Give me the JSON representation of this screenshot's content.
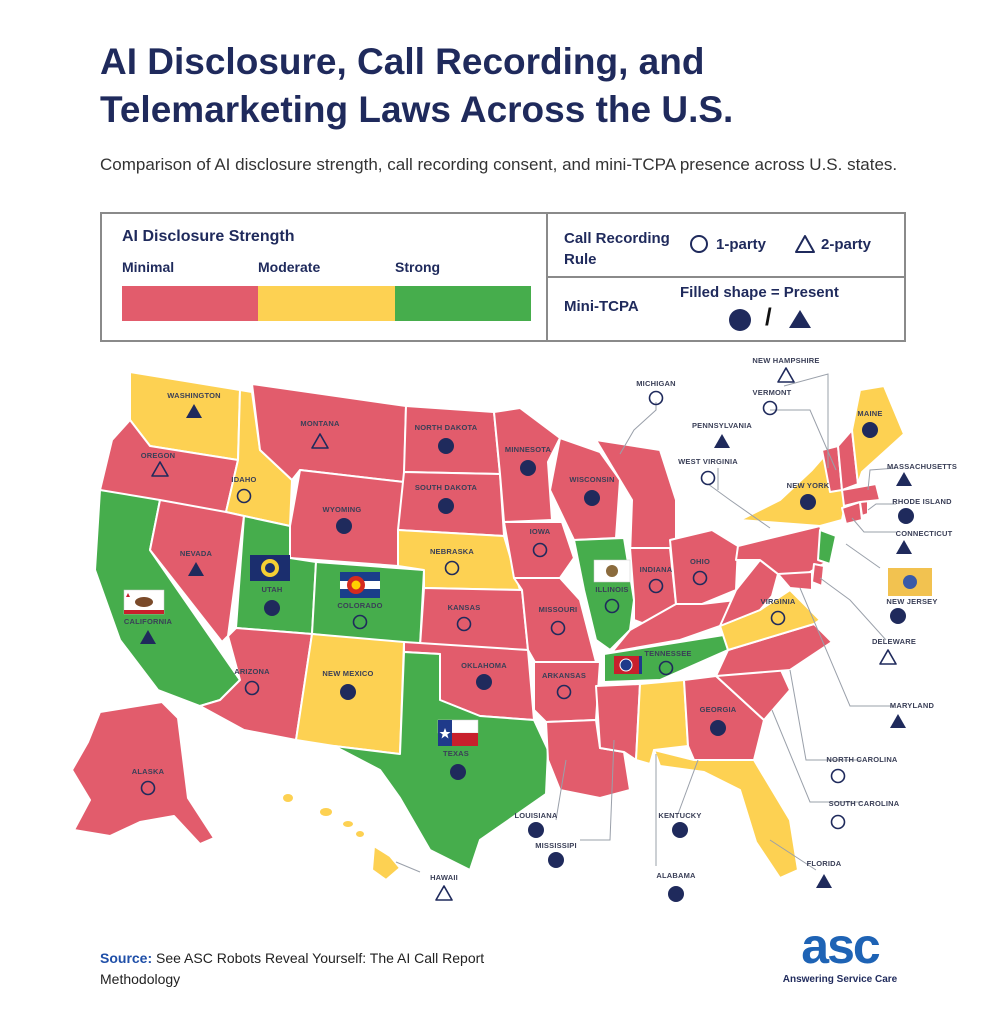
{
  "title_line1": "AI Disclosure, Call Recording, and",
  "title_line2": "Telemarketing Laws Across the U.S.",
  "subtitle": "Comparison of AI disclosure strength, call recording consent, and mini-TCPA presence across U.S. states.",
  "legend": {
    "ai_title": "AI Disclosure Strength",
    "tiers": [
      {
        "label": "Minimal",
        "color": "#e25c6c"
      },
      {
        "label": "Moderate",
        "color": "#fdd152"
      },
      {
        "label": "Strong",
        "color": "#46ad4c"
      }
    ],
    "call_title": "Call Recording Rule",
    "one_party": "1-party",
    "two_party": "2-party",
    "mini_title": "Mini-TCPA",
    "filled_label": "Filled shape = Present",
    "separator": "/"
  },
  "colors": {
    "minimal": "#e25c6c",
    "moderate": "#fdd152",
    "strong": "#46ad4c",
    "marker": "#1f2a5c",
    "border": "#ffffff"
  },
  "states": [
    {
      "name": "WASHINGTON",
      "disclosure": "moderate",
      "recording": "2-party",
      "mini_tcpa": true
    },
    {
      "name": "OREGON",
      "disclosure": "minimal",
      "recording": "2-party",
      "mini_tcpa": false
    },
    {
      "name": "CALIFORNIA",
      "disclosure": "strong",
      "recording": "2-party",
      "mini_tcpa": true
    },
    {
      "name": "IDAHO",
      "disclosure": "moderate",
      "recording": "1-party",
      "mini_tcpa": false
    },
    {
      "name": "NEVADA",
      "disclosure": "minimal",
      "recording": "2-party",
      "mini_tcpa": true
    },
    {
      "name": "MONTANA",
      "disclosure": "minimal",
      "recording": "2-party",
      "mini_tcpa": false
    },
    {
      "name": "WYOMING",
      "disclosure": "minimal",
      "recording": "1-party",
      "mini_tcpa": true
    },
    {
      "name": "UTAH",
      "disclosure": "strong",
      "recording": "1-party",
      "mini_tcpa": true
    },
    {
      "name": "COLORADO",
      "disclosure": "strong",
      "recording": "1-party",
      "mini_tcpa": false
    },
    {
      "name": "ARIZONA",
      "disclosure": "minimal",
      "recording": "1-party",
      "mini_tcpa": false
    },
    {
      "name": "NEW MEXICO",
      "disclosure": "moderate",
      "recording": "1-party",
      "mini_tcpa": true
    },
    {
      "name": "NORTH DAKOTA",
      "disclosure": "minimal",
      "recording": "1-party",
      "mini_tcpa": true
    },
    {
      "name": "SOUTH DAKOTA",
      "disclosure": "minimal",
      "recording": "1-party",
      "mini_tcpa": true
    },
    {
      "name": "NEBRASKA",
      "disclosure": "moderate",
      "recording": "1-party",
      "mini_tcpa": false
    },
    {
      "name": "KANSAS",
      "disclosure": "minimal",
      "recording": "1-party",
      "mini_tcpa": false
    },
    {
      "name": "OKLAHOMA",
      "disclosure": "minimal",
      "recording": "1-party",
      "mini_tcpa": true
    },
    {
      "name": "TEXAS",
      "disclosure": "strong",
      "recording": "1-party",
      "mini_tcpa": true
    },
    {
      "name": "MINNESOTA",
      "disclosure": "minimal",
      "recording": "1-party",
      "mini_tcpa": true
    },
    {
      "name": "IOWA",
      "disclosure": "minimal",
      "recording": "1-party",
      "mini_tcpa": false
    },
    {
      "name": "MISSOURI",
      "disclosure": "minimal",
      "recording": "1-party",
      "mini_tcpa": false
    },
    {
      "name": "ARKANSAS",
      "disclosure": "minimal",
      "recording": "1-party",
      "mini_tcpa": false
    },
    {
      "name": "LOUISIANA",
      "disclosure": "minimal",
      "recording": "1-party",
      "mini_tcpa": true
    },
    {
      "name": "WISCONSIN",
      "disclosure": "minimal",
      "recording": "1-party",
      "mini_tcpa": true
    },
    {
      "name": "ILLINOIS",
      "disclosure": "strong",
      "recording": "1-party",
      "mini_tcpa": false
    },
    {
      "name": "MICHIGAN",
      "disclosure": "minimal",
      "recording": "1-party",
      "mini_tcpa": false
    },
    {
      "name": "INDIANA",
      "disclosure": "minimal",
      "recording": "1-party",
      "mini_tcpa": false
    },
    {
      "name": "OHIO",
      "disclosure": "minimal",
      "recording": "1-party",
      "mini_tcpa": false
    },
    {
      "name": "KENTUCKY",
      "disclosure": "minimal",
      "recording": "1-party",
      "mini_tcpa": true
    },
    {
      "name": "TENNESSEE",
      "disclosure": "strong",
      "recording": "1-party",
      "mini_tcpa": false
    },
    {
      "name": "MISSISSIPI",
      "disclosure": "minimal",
      "recording": "1-party",
      "mini_tcpa": true
    },
    {
      "name": "ALABAMA",
      "disclosure": "moderate",
      "recording": "1-party",
      "mini_tcpa": true
    },
    {
      "name": "GEORGIA",
      "disclosure": "minimal",
      "recording": "1-party",
      "mini_tcpa": true
    },
    {
      "name": "FLORIDA",
      "disclosure": "moderate",
      "recording": "2-party",
      "mini_tcpa": true
    },
    {
      "name": "SOUTH CAROLINA",
      "disclosure": "minimal",
      "recording": "1-party",
      "mini_tcpa": false
    },
    {
      "name": "NORTH CAROLINA",
      "disclosure": "minimal",
      "recording": "1-party",
      "mini_tcpa": false
    },
    {
      "name": "VIRGINIA",
      "disclosure": "moderate",
      "recording": "1-party",
      "mini_tcpa": false
    },
    {
      "name": "WEST VIRGINIA",
      "disclosure": "minimal",
      "recording": "1-party",
      "mini_tcpa": false
    },
    {
      "name": "PENNSYLVANIA",
      "disclosure": "minimal",
      "recording": "2-party",
      "mini_tcpa": true
    },
    {
      "name": "NEW YORK",
      "disclosure": "moderate",
      "recording": "1-party",
      "mini_tcpa": true
    },
    {
      "name": "NEW JERSEY",
      "disclosure": "strong",
      "recording": "1-party",
      "mini_tcpa": true
    },
    {
      "name": "DELEWARE",
      "disclosure": "minimal",
      "recording": "2-party",
      "mini_tcpa": false
    },
    {
      "name": "MARYLAND",
      "disclosure": "minimal",
      "recording": "2-party",
      "mini_tcpa": true
    },
    {
      "name": "CONNECTICUT",
      "disclosure": "minimal",
      "recording": "2-party",
      "mini_tcpa": true
    },
    {
      "name": "RHODE ISLAND",
      "disclosure": "minimal",
      "recording": "1-party",
      "mini_tcpa": true
    },
    {
      "name": "MASSACHUSETTS",
      "disclosure": "minimal",
      "recording": "2-party",
      "mini_tcpa": true
    },
    {
      "name": "VERMONT",
      "disclosure": "minimal",
      "recording": "1-party",
      "mini_tcpa": false
    },
    {
      "name": "NEW HAMPSHIRE",
      "disclosure": "minimal",
      "recording": "2-party",
      "mini_tcpa": false
    },
    {
      "name": "MAINE",
      "disclosure": "moderate",
      "recording": "1-party",
      "mini_tcpa": true
    },
    {
      "name": "ALASKA",
      "disclosure": "minimal",
      "recording": "1-party",
      "mini_tcpa": false
    },
    {
      "name": "HAWAII",
      "disclosure": "moderate",
      "recording": "2-party",
      "mini_tcpa": false
    }
  ],
  "flags": [
    "california-flag",
    "utah-flag",
    "colorado-flag",
    "texas-flag",
    "illinois-flag",
    "tennessee-flag",
    "new-jersey-flag"
  ],
  "source_label": "Source:",
  "source_text": " See ASC Robots Reveal Yourself: The AI Call Report Methodology",
  "logo_text": "asc",
  "logo_sub": "Answering Service Care"
}
